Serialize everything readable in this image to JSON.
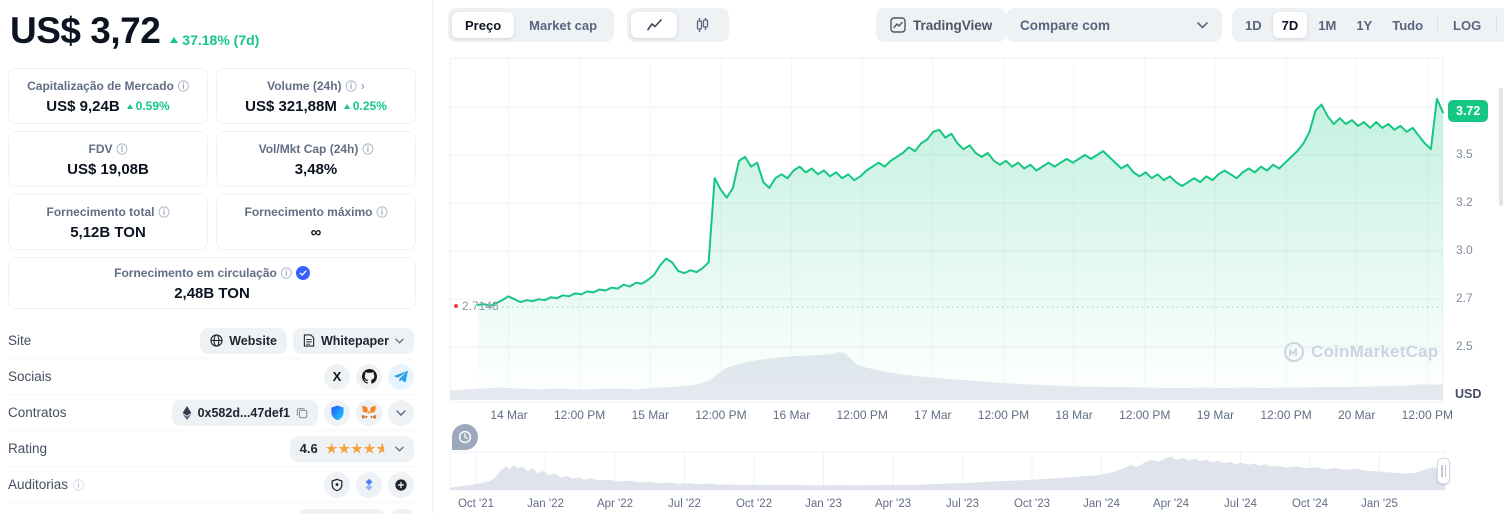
{
  "sidebar": {
    "price": "US$ 3,72",
    "change": "37.18% (7d)",
    "stats": [
      {
        "label": "Capitalização de Mercado",
        "value": "US$ 9,24B",
        "delta": "0.59%"
      },
      {
        "label": "Volume (24h)",
        "value": "US$ 321,88M",
        "delta": "0.25%"
      },
      {
        "label": "FDV",
        "value": "US$ 19,08B"
      },
      {
        "label": "Vol/Mkt Cap (24h)",
        "value": "3,48%"
      },
      {
        "label": "Fornecimento total",
        "value": "5,12B TON"
      },
      {
        "label": "Fornecimento máximo",
        "value": "∞"
      }
    ],
    "circulating": {
      "label": "Fornecimento em circulação",
      "value": "2,48B TON"
    },
    "rows": {
      "site": {
        "label": "Site",
        "website": "Website",
        "whitepaper": "Whitepaper"
      },
      "sociais": {
        "label": "Sociais"
      },
      "contratos": {
        "label": "Contratos",
        "address": "0x582d...47def1"
      },
      "rating": {
        "label": "Rating",
        "value": "4.6"
      },
      "auditorias": {
        "label": "Auditorias"
      }
    }
  },
  "chart_header": {
    "tabs": {
      "price": "Preço",
      "market_cap": "Market cap"
    },
    "tradingview": "TradingView",
    "compare": "Compare com",
    "ranges": [
      "1D",
      "7D",
      "1M",
      "1Y",
      "Tudo"
    ],
    "active_range": "7D",
    "log": "LOG",
    "more": "···"
  },
  "watermark": "CoinMarketCap",
  "icons": {
    "info-icon": "ⓘ",
    "caret-up-icon": "▲",
    "chevron-right-icon": "›",
    "star-icon": "★",
    "x-twitter-icon": "X",
    "infinity": "∞"
  },
  "colors": {
    "green": "#16c784",
    "red": "#ea3943",
    "blue": "#3861fb",
    "muted": "#616e85",
    "grid": "#f0f2f5"
  },
  "chart_data": [
    {
      "type": "area",
      "name": "TON / USD price, 7 days",
      "unit": "USD",
      "usd_label": "USD",
      "current_price": 3.72,
      "current_badge": "3.72",
      "period_low": 2.7148,
      "low_label": "2.7148",
      "y_ticks": [
        "3.5",
        "3.2",
        "3.0",
        "2.7",
        "2.5"
      ],
      "x_ticks": [
        "14 Mar",
        "12:00 PM",
        "15 Mar",
        "12:00 PM",
        "16 Mar",
        "12:00 PM",
        "17 Mar",
        "12:00 PM",
        "18 Mar",
        "12:00 PM",
        "19 Mar",
        "12:00 PM",
        "20 Mar",
        "12:00 PM"
      ],
      "prices": [
        2.725,
        2.73,
        2.72,
        2.735,
        2.75,
        2.77,
        2.755,
        2.74,
        2.75,
        2.745,
        2.755,
        2.75,
        2.765,
        2.76,
        2.775,
        2.77,
        2.785,
        2.78,
        2.795,
        2.79,
        2.805,
        2.8,
        2.815,
        2.81,
        2.83,
        2.82,
        2.84,
        2.835,
        2.855,
        2.88,
        2.93,
        2.965,
        2.945,
        2.9,
        2.89,
        2.905,
        2.895,
        2.915,
        2.945,
        3.38,
        3.32,
        3.28,
        3.33,
        3.47,
        3.49,
        3.44,
        3.46,
        3.36,
        3.33,
        3.38,
        3.4,
        3.38,
        3.42,
        3.44,
        3.41,
        3.43,
        3.4,
        3.42,
        3.39,
        3.41,
        3.38,
        3.4,
        3.37,
        3.39,
        3.42,
        3.44,
        3.46,
        3.44,
        3.47,
        3.49,
        3.51,
        3.54,
        3.52,
        3.56,
        3.58,
        3.62,
        3.63,
        3.59,
        3.61,
        3.56,
        3.53,
        3.55,
        3.51,
        3.49,
        3.51,
        3.47,
        3.45,
        3.47,
        3.44,
        3.46,
        3.43,
        3.45,
        3.42,
        3.44,
        3.46,
        3.44,
        3.46,
        3.48,
        3.46,
        3.48,
        3.5,
        3.48,
        3.5,
        3.52,
        3.49,
        3.46,
        3.43,
        3.45,
        3.41,
        3.39,
        3.41,
        3.38,
        3.4,
        3.37,
        3.39,
        3.36,
        3.34,
        3.36,
        3.38,
        3.36,
        3.39,
        3.37,
        3.4,
        3.42,
        3.4,
        3.38,
        3.41,
        3.43,
        3.41,
        3.44,
        3.42,
        3.45,
        3.43,
        3.46,
        3.49,
        3.52,
        3.56,
        3.62,
        3.73,
        3.76,
        3.7,
        3.66,
        3.69,
        3.66,
        3.68,
        3.65,
        3.67,
        3.64,
        3.67,
        3.64,
        3.66,
        3.63,
        3.65,
        3.62,
        3.64,
        3.6,
        3.56,
        3.53,
        3.79,
        3.72
      ],
      "volume_profile": [
        [
          0,
          0.2
        ],
        [
          0.03,
          0.24
        ],
        [
          0.05,
          0.26
        ],
        [
          0.07,
          0.24
        ],
        [
          0.09,
          0.22
        ],
        [
          0.11,
          0.24
        ],
        [
          0.13,
          0.22
        ],
        [
          0.15,
          0.23
        ],
        [
          0.17,
          0.24
        ],
        [
          0.19,
          0.22
        ],
        [
          0.21,
          0.26
        ],
        [
          0.23,
          0.28
        ],
        [
          0.25,
          0.33
        ],
        [
          0.262,
          0.42
        ],
        [
          0.27,
          0.55
        ],
        [
          0.278,
          0.66
        ],
        [
          0.286,
          0.72
        ],
        [
          0.296,
          0.78
        ],
        [
          0.306,
          0.82
        ],
        [
          0.316,
          0.85
        ],
        [
          0.326,
          0.87
        ],
        [
          0.336,
          0.9
        ],
        [
          0.346,
          0.91
        ],
        [
          0.356,
          0.92
        ],
        [
          0.366,
          0.93
        ],
        [
          0.376,
          0.94
        ],
        [
          0.386,
          0.96
        ],
        [
          0.392,
          1
        ],
        [
          0.398,
          0.97
        ],
        [
          0.404,
          0.85
        ],
        [
          0.41,
          0.74
        ],
        [
          0.42,
          0.67
        ],
        [
          0.43,
          0.62
        ],
        [
          0.44,
          0.58
        ],
        [
          0.45,
          0.55
        ],
        [
          0.46,
          0.52
        ],
        [
          0.47,
          0.5
        ],
        [
          0.48,
          0.48
        ],
        [
          0.49,
          0.46
        ],
        [
          0.5,
          0.44
        ],
        [
          0.52,
          0.41
        ],
        [
          0.54,
          0.38
        ],
        [
          0.56,
          0.35
        ],
        [
          0.58,
          0.33
        ],
        [
          0.6,
          0.31
        ],
        [
          0.62,
          0.29
        ],
        [
          0.64,
          0.28
        ],
        [
          0.66,
          0.27
        ],
        [
          0.68,
          0.27
        ],
        [
          0.7,
          0.26
        ],
        [
          0.72,
          0.25
        ],
        [
          0.74,
          0.25
        ],
        [
          0.76,
          0.26
        ],
        [
          0.78,
          0.25
        ],
        [
          0.8,
          0.26
        ],
        [
          0.82,
          0.25
        ],
        [
          0.84,
          0.26
        ],
        [
          0.86,
          0.26
        ],
        [
          0.88,
          0.27
        ],
        [
          0.9,
          0.27
        ],
        [
          0.92,
          0.28
        ],
        [
          0.94,
          0.29
        ],
        [
          0.96,
          0.3
        ],
        [
          0.98,
          0.33
        ],
        [
          1,
          0.32
        ]
      ]
    },
    {
      "type": "area",
      "name": "TON all-time navigator",
      "x_ticks": [
        "Oct '21",
        "Jan '22",
        "Apr '22",
        "Jul '22",
        "Oct '22",
        "Jan '23",
        "Apr '23",
        "Jul '23",
        "Oct '23",
        "Jan '24",
        "Apr '24",
        "Jul '24",
        "Oct '24",
        "Jan '25"
      ],
      "profile": [
        [
          0,
          0.06
        ],
        [
          0.01,
          0.1
        ],
        [
          0.02,
          0.13
        ],
        [
          0.03,
          0.17
        ],
        [
          0.04,
          0.24
        ],
        [
          0.046,
          0.34
        ],
        [
          0.051,
          0.52
        ],
        [
          0.056,
          0.62
        ],
        [
          0.06,
          0.55
        ],
        [
          0.064,
          0.65
        ],
        [
          0.068,
          0.57
        ],
        [
          0.073,
          0.62
        ],
        [
          0.078,
          0.5
        ],
        [
          0.083,
          0.57
        ],
        [
          0.088,
          0.44
        ],
        [
          0.093,
          0.5
        ],
        [
          0.099,
          0.39
        ],
        [
          0.105,
          0.44
        ],
        [
          0.111,
          0.33
        ],
        [
          0.117,
          0.37
        ],
        [
          0.123,
          0.3
        ],
        [
          0.129,
          0.34
        ],
        [
          0.135,
          0.27
        ],
        [
          0.142,
          0.31
        ],
        [
          0.149,
          0.25
        ],
        [
          0.16,
          0.27
        ],
        [
          0.17,
          0.22
        ],
        [
          0.18,
          0.25
        ],
        [
          0.19,
          0.2
        ],
        [
          0.2,
          0.22
        ],
        [
          0.21,
          0.18
        ],
        [
          0.22,
          0.2
        ],
        [
          0.23,
          0.16
        ],
        [
          0.24,
          0.18
        ],
        [
          0.25,
          0.15
        ],
        [
          0.26,
          0.17
        ],
        [
          0.27,
          0.14
        ],
        [
          0.28,
          0.15
        ],
        [
          0.29,
          0.13
        ],
        [
          0.31,
          0.14
        ],
        [
          0.33,
          0.13
        ],
        [
          0.35,
          0.13
        ],
        [
          0.37,
          0.12
        ],
        [
          0.39,
          0.13
        ],
        [
          0.41,
          0.12
        ],
        [
          0.43,
          0.13
        ],
        [
          0.45,
          0.13
        ],
        [
          0.47,
          0.14
        ],
        [
          0.49,
          0.16
        ],
        [
          0.51,
          0.18
        ],
        [
          0.53,
          0.2
        ],
        [
          0.55,
          0.23
        ],
        [
          0.57,
          0.25
        ],
        [
          0.59,
          0.28
        ],
        [
          0.61,
          0.31
        ],
        [
          0.63,
          0.35
        ],
        [
          0.65,
          0.39
        ],
        [
          0.66,
          0.43
        ],
        [
          0.67,
          0.5
        ],
        [
          0.678,
          0.58
        ],
        [
          0.684,
          0.66
        ],
        [
          0.69,
          0.6
        ],
        [
          0.695,
          0.68
        ],
        [
          0.7,
          0.75
        ],
        [
          0.706,
          0.8
        ],
        [
          0.712,
          0.74
        ],
        [
          0.718,
          0.82
        ],
        [
          0.724,
          0.88
        ],
        [
          0.73,
          0.8
        ],
        [
          0.736,
          0.85
        ],
        [
          0.742,
          0.78
        ],
        [
          0.748,
          0.83
        ],
        [
          0.754,
          0.76
        ],
        [
          0.76,
          0.8
        ],
        [
          0.766,
          0.73
        ],
        [
          0.772,
          0.77
        ],
        [
          0.778,
          0.71
        ],
        [
          0.784,
          0.74
        ],
        [
          0.79,
          0.68
        ],
        [
          0.796,
          0.72
        ],
        [
          0.802,
          0.66
        ],
        [
          0.808,
          0.7
        ],
        [
          0.814,
          0.64
        ],
        [
          0.82,
          0.67
        ],
        [
          0.826,
          0.61
        ],
        [
          0.832,
          0.64
        ],
        [
          0.84,
          0.59
        ],
        [
          0.85,
          0.62
        ],
        [
          0.86,
          0.57
        ],
        [
          0.87,
          0.6
        ],
        [
          0.88,
          0.55
        ],
        [
          0.89,
          0.58
        ],
        [
          0.9,
          0.53
        ],
        [
          0.91,
          0.56
        ],
        [
          0.92,
          0.51
        ],
        [
          0.93,
          0.49
        ],
        [
          0.94,
          0.47
        ],
        [
          0.95,
          0.45
        ],
        [
          0.96,
          0.43
        ],
        [
          0.97,
          0.45
        ],
        [
          0.976,
          0.5
        ],
        [
          0.982,
          0.56
        ],
        [
          0.988,
          0.6
        ],
        [
          0.994,
          0.55
        ],
        [
          1,
          0.53
        ]
      ]
    }
  ]
}
